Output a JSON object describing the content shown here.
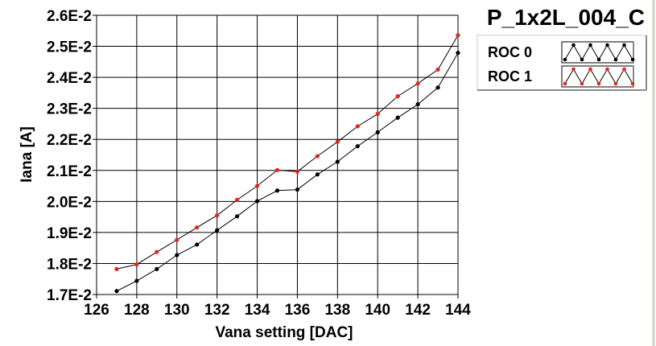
{
  "chart_data": {
    "type": "line",
    "title": "P_1x2L_004_C",
    "xlabel": "Vana setting [DAC]",
    "ylabel": "Iana [A]",
    "xlim": [
      126,
      144
    ],
    "ylim": [
      0.017,
      0.026
    ],
    "grid": true,
    "legend_position": "right",
    "x_ticks": [
      "126",
      "128",
      "130",
      "132",
      "134",
      "136",
      "138",
      "140",
      "142",
      "144"
    ],
    "y_ticks": [
      "1.7E-2",
      "1.8E-2",
      "1.9E-2",
      "2.0E-2",
      "2.1E-2",
      "2.2E-2",
      "2.3E-2",
      "2.4E-2",
      "2.5E-2",
      "2.6E-2"
    ],
    "x": [
      127,
      128,
      129,
      130,
      131,
      132,
      133,
      134,
      135,
      136,
      137,
      138,
      139,
      140,
      141,
      142,
      143,
      144
    ],
    "series": [
      {
        "name": "ROC 0",
        "color": "#000000",
        "values": [
          0.01711,
          0.01744,
          0.01782,
          0.01827,
          0.01861,
          0.01907,
          0.01952,
          0.02001,
          0.02035,
          0.02038,
          0.02087,
          0.02128,
          0.02178,
          0.02223,
          0.0227,
          0.02313,
          0.02367,
          0.02479
        ]
      },
      {
        "name": "ROC 1",
        "color": "#e8221b",
        "values": [
          0.01782,
          0.01797,
          0.01837,
          0.01876,
          0.01916,
          0.01955,
          0.02005,
          0.0205,
          0.02101,
          0.02096,
          0.02146,
          0.02192,
          0.02242,
          0.02282,
          0.02339,
          0.0238,
          0.02425,
          0.02536
        ]
      }
    ]
  }
}
